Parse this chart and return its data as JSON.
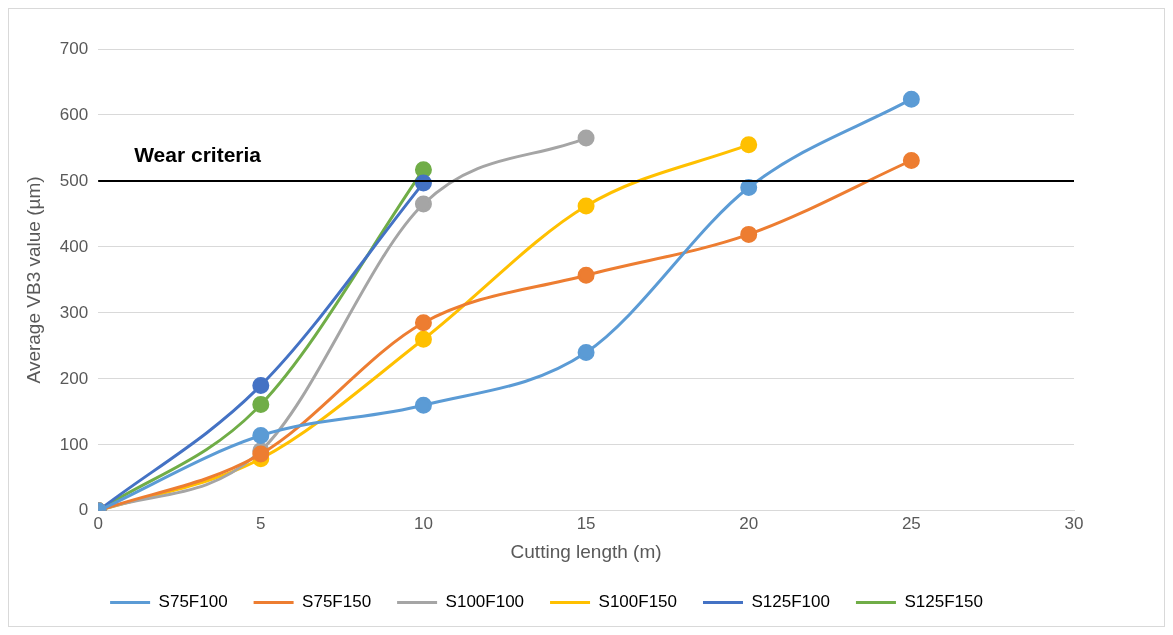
{
  "chart_data": {
    "type": "line",
    "xlabel": "Cutting length (m)",
    "ylabel": "Average VB3 value (µm)",
    "xlim": [
      0,
      30
    ],
    "xticks": [
      0,
      5,
      10,
      15,
      20,
      25,
      30
    ],
    "ylim": [
      0,
      700
    ],
    "yticks": [
      0,
      100,
      200,
      300,
      400,
      500,
      600,
      700
    ],
    "grid": "y",
    "legend": "bottom",
    "marker": "circle",
    "line_style": "solid",
    "ref_lines": [
      {
        "axis": "y",
        "value": 500,
        "label": "Wear criteria",
        "color": "#000000"
      }
    ],
    "series": [
      {
        "name": "S75F100",
        "color": "#5b9bd5",
        "x": [
          0,
          5,
          10,
          15,
          20,
          25
        ],
        "values": [
          0,
          114,
          160,
          240,
          490,
          624
        ]
      },
      {
        "name": "S75F150",
        "color": "#ed7d31",
        "x": [
          0,
          5,
          10,
          15,
          20,
          25
        ],
        "values": [
          0,
          86,
          285,
          357,
          419,
          531
        ]
      },
      {
        "name": "S100F100",
        "color": "#a5a5a5",
        "x": [
          0,
          5,
          10,
          15
        ],
        "values": [
          0,
          91,
          465,
          565
        ]
      },
      {
        "name": "S100F150",
        "color": "#ffc000",
        "x": [
          0,
          5,
          10,
          15,
          20
        ],
        "values": [
          0,
          79,
          260,
          462,
          555
        ]
      },
      {
        "name": "S125F100",
        "color": "#4472c4",
        "x": [
          0,
          5,
          10
        ],
        "values": [
          0,
          190,
          497
        ]
      },
      {
        "name": "S125F150",
        "color": "#70ad47",
        "x": [
          0,
          5,
          10
        ],
        "values": [
          0,
          161,
          517
        ]
      }
    ]
  }
}
